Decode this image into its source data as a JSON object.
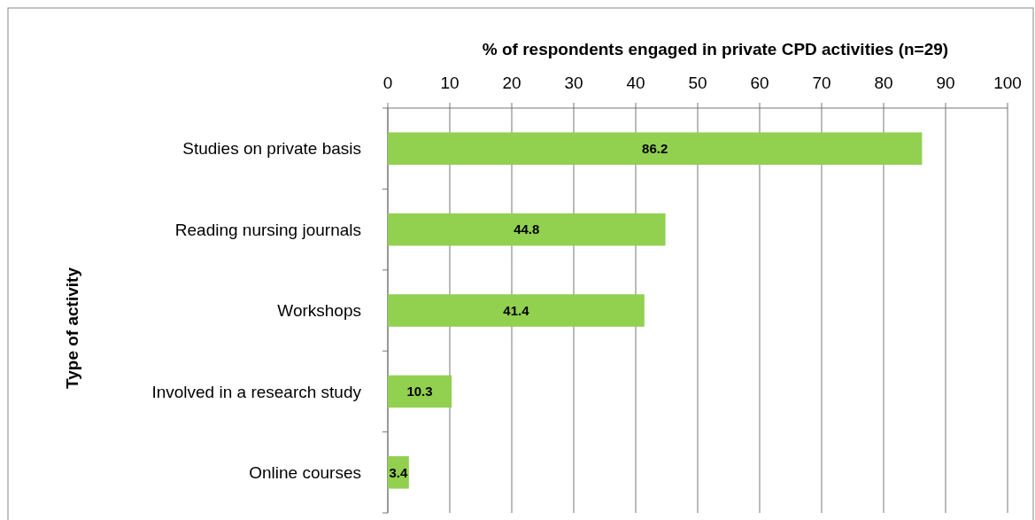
{
  "chart_data": {
    "type": "bar",
    "orientation": "horizontal",
    "xlabel": "% of respondents engaged in private CPD activities (n=29)",
    "ylabel": "Type of activity",
    "categories": [
      "Studies on private basis",
      "Reading nursing journals",
      "Workshops",
      "Involved in a research study",
      "Online courses"
    ],
    "values": [
      86.2,
      44.8,
      41.4,
      10.3,
      3.4
    ],
    "color": "#92d050",
    "xlim": [
      0,
      100
    ],
    "xticks": [
      0,
      10,
      20,
      30,
      40,
      50,
      60,
      70,
      80,
      90,
      100
    ],
    "grid": "x",
    "data_labels": true
  }
}
